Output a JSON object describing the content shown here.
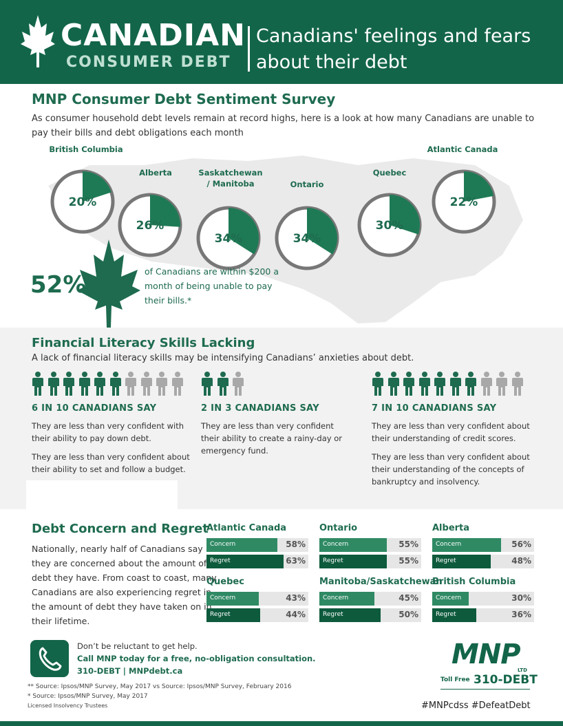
{
  "header": {
    "title_line1": "CANADIAN",
    "title_line2": "CONSUMER DEBT",
    "subtitle": "Canadians' feelings and fears about their debt"
  },
  "sentiment": {
    "title": "MNP Consumer Debt Sentiment Survey",
    "intro": "As consumer household debt levels remain at record highs, here is a look at how many Canadians are unable to pay their bills and debt obligations each month",
    "big_stat": "52%",
    "stat_text": "of Canadians are within $200 a month of being unable to pay their bills.*"
  },
  "literacy": {
    "title": "Financial Literacy Skills Lacking",
    "intro": "A lack of financial literacy skills may be intensifying Canadians’ anxieties about debt.",
    "columns": [
      {
        "heading": "6 IN 10 CANADIANS SAY",
        "filled": 6,
        "total": 10,
        "p1": "They are less than very confident with their ability to pay down debt.",
        "p2": "They are less than very confident about their ability to set and follow a budget."
      },
      {
        "heading": "2 IN 3 CANADIANS SAY",
        "filled": 2,
        "total": 3,
        "p1": "They are less than very confident their ability to create a rainy-day or emergency fund.",
        "p2": ""
      },
      {
        "heading": "7 IN 10 CANADIANS SAY",
        "filled": 7,
        "total": 10,
        "p1": "They are less than very confident about their understanding of credit scores.",
        "p2": "They are less than very confident about their understanding of the concepts of bankruptcy and insolvency."
      }
    ]
  },
  "regret": {
    "title": "Debt Concern and Regret",
    "body": "Nationally, nearly half of Canadians say they are concerned about the amount of debt they have. From coast to coast, many Canadians are also experiencing regret in the amount of debt they have taken on in their lifetime.",
    "concern_label": "Concern",
    "regret_label": "Regret"
  },
  "chart_data": [
    {
      "type": "pie",
      "categories": [
        "British Columbia",
        "Alberta",
        "Saskatchewan / Manitoba",
        "Ontario",
        "Quebec",
        "Atlantic Canada"
      ],
      "values": [
        20,
        26,
        34,
        34,
        30,
        22
      ],
      "labels": [
        "20%",
        "26%",
        "34%",
        "34%",
        "30%",
        "22%"
      ],
      "colors": {
        "slice": "#1e7a55",
        "ring": "#777777",
        "background": "#ffffff"
      }
    },
    {
      "type": "bar",
      "categories": [
        "Atlantic Canada",
        "Ontario",
        "Alberta",
        "Quebec",
        "Manitoba/Saskatchewan",
        "British Columbia"
      ],
      "series": [
        {
          "name": "Concern",
          "values": [
            58,
            55,
            56,
            43,
            45,
            30
          ],
          "labels": [
            "58%",
            "55%",
            "56%",
            "43%",
            "45%",
            "30%"
          ],
          "color": "#2f8a64"
        },
        {
          "name": "Regret",
          "values": [
            63,
            55,
            48,
            44,
            50,
            36
          ],
          "labels": [
            "63%",
            "55%",
            "48%",
            "44%",
            "50%",
            "36%"
          ],
          "color": "#0d5a3c"
        }
      ],
      "ylim": [
        0,
        100
      ]
    }
  ],
  "footer": {
    "line1": "Don’t be reluctant to get help.",
    "line2": "Call MNP today for a free, no-obligation consultation.",
    "line3": "310-DEBT | MNPdebt.ca",
    "source1": "** Source: Ipsos/MNP Survey, May 2017 vs Source: Ipsos/MNP Survey, February 2016",
    "source2": "* Source: Ipsos/MNP Survey, May 2017",
    "source3": "Licensed Insolvency Trustees",
    "logo": "MNP",
    "logo_ltd": "LTD",
    "toll_label": "Toll Free",
    "toll_number": "310-DEBT",
    "hashtags": "#MNPcdss #DefeatDebt"
  }
}
